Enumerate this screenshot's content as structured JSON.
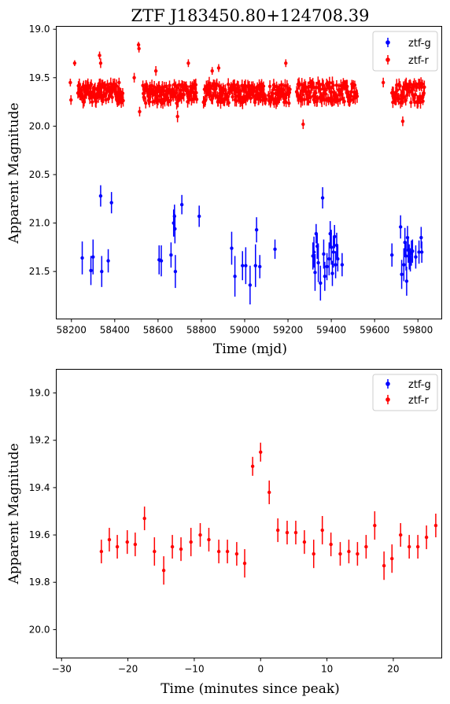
{
  "chart_data": [
    {
      "type": "scatter",
      "title": "ZTF J183450.80+124708.39",
      "xlabel": "Time (mjd)",
      "ylabel": "Apparent Magnitude",
      "xlim": [
        58130,
        59910
      ],
      "ylim": [
        21.99,
        18.97
      ],
      "y_inverted": true,
      "xticks": [
        58200,
        58400,
        58600,
        58800,
        59000,
        59200,
        59400,
        59600,
        59800
      ],
      "yticks": [
        19.0,
        19.5,
        20.0,
        20.5,
        21.0,
        21.5
      ],
      "ytick_labels": [
        "19.0",
        "19.5",
        "20.0",
        "20.5",
        "21.0",
        "21.5"
      ],
      "legend": "top-right",
      "series": [
        {
          "name": "ztf-g",
          "color": "#0000ff",
          "points": [
            [
              58250,
              21.36,
              0.17
            ],
            [
              58290,
              21.49,
              0.15
            ],
            [
              58300,
              21.35,
              0.18
            ],
            [
              58335,
              20.72,
              0.11
            ],
            [
              58340,
              21.5,
              0.16
            ],
            [
              58370,
              21.39,
              0.12
            ],
            [
              58385,
              20.79,
              0.11
            ],
            [
              58605,
              21.38,
              0.15
            ],
            [
              58615,
              21.39,
              0.16
            ],
            [
              58660,
              21.33,
              0.13
            ],
            [
              58672,
              21.0,
              0.14
            ],
            [
              58676,
              20.93,
              0.12
            ],
            [
              58678,
              21.06,
              0.15
            ],
            [
              58680,
              21.5,
              0.17
            ],
            [
              58710,
              20.81,
              0.1
            ],
            [
              58790,
              20.93,
              0.11
            ],
            [
              58940,
              21.26,
              0.17
            ],
            [
              58955,
              21.55,
              0.21
            ],
            [
              58990,
              21.44,
              0.15
            ],
            [
              59005,
              21.44,
              0.19
            ],
            [
              59025,
              21.64,
              0.2
            ],
            [
              59050,
              21.44,
              0.22
            ],
            [
              59055,
              21.07,
              0.13
            ],
            [
              59070,
              21.45,
              0.12
            ],
            [
              59140,
              21.27,
              0.1
            ],
            [
              59315,
              21.34,
              0.14
            ],
            [
              59320,
              21.3,
              0.16
            ],
            [
              59325,
              21.51,
              0.19
            ],
            [
              59330,
              21.11,
              0.1
            ],
            [
              59335,
              21.24,
              0.13
            ],
            [
              59340,
              21.41,
              0.2
            ],
            [
              59350,
              21.62,
              0.18
            ],
            [
              59360,
              20.74,
              0.11
            ],
            [
              59365,
              21.32,
              0.15
            ],
            [
              59370,
              21.55,
              0.15
            ],
            [
              59380,
              21.45,
              0.14
            ],
            [
              59390,
              21.37,
              0.17
            ],
            [
              59395,
              21.11,
              0.13
            ],
            [
              59400,
              21.25,
              0.18
            ],
            [
              59405,
              21.52,
              0.13
            ],
            [
              59410,
              21.3,
              0.16
            ],
            [
              59415,
              21.14,
              0.12
            ],
            [
              59420,
              21.43,
              0.14
            ],
            [
              59425,
              21.23,
              0.13
            ],
            [
              59430,
              21.37,
              0.13
            ],
            [
              59450,
              21.43,
              0.12
            ],
            [
              59680,
              21.33,
              0.12
            ],
            [
              59720,
              21.04,
              0.12
            ],
            [
              59725,
              21.53,
              0.15
            ],
            [
              59735,
              21.43,
              0.17
            ],
            [
              59740,
              21.2,
              0.15
            ],
            [
              59745,
              21.34,
              0.15
            ],
            [
              59748,
              21.6,
              0.15
            ],
            [
              59752,
              21.15,
              0.12
            ],
            [
              59755,
              21.28,
              0.13
            ],
            [
              59760,
              21.35,
              0.13
            ],
            [
              59765,
              21.38,
              0.12
            ],
            [
              59770,
              21.31,
              0.13
            ],
            [
              59775,
              21.29,
              0.12
            ],
            [
              59790,
              21.35,
              0.12
            ],
            [
              59805,
              21.3,
              0.12
            ],
            [
              59815,
              21.15,
              0.11
            ],
            [
              59818,
              21.3,
              0.11
            ]
          ]
        },
        {
          "name": "ztf-r",
          "color": "#ff0000",
          "points": [
            [
              58195,
              19.55,
              0.04
            ],
            [
              58198,
              19.73,
              0.05
            ],
            [
              58215,
              19.35,
              0.03
            ],
            [
              58510,
              19.16,
              0.03
            ],
            [
              58512,
              19.2,
              0.04
            ],
            [
              58515,
              19.85,
              0.05
            ],
            [
              58330,
              19.27,
              0.04
            ],
            [
              58335,
              19.35,
              0.05
            ],
            [
              58410,
              19.73,
              0.05
            ],
            [
              58420,
              19.55,
              0.05
            ],
            [
              58490,
              19.5,
              0.05
            ],
            [
              58560,
              19.72,
              0.05
            ],
            [
              58590,
              19.43,
              0.05
            ],
            [
              58615,
              19.67,
              0.05
            ],
            [
              58690,
              19.9,
              0.06
            ],
            [
              58740,
              19.35,
              0.04
            ],
            [
              58850,
              19.43,
              0.04
            ],
            [
              58880,
              19.4,
              0.04
            ],
            [
              59000,
              19.6,
              0.05
            ],
            [
              59150,
              19.75,
              0.05
            ],
            [
              59190,
              19.35,
              0.04
            ],
            [
              59270,
              19.98,
              0.05
            ],
            [
              59320,
              19.6,
              0.05
            ],
            [
              59640,
              19.55,
              0.05
            ],
            [
              59730,
              19.95,
              0.05
            ],
            [
              59820,
              19.7,
              0.05
            ]
          ],
          "dense_bands": [
            [
              58230,
              58440,
              19.66
            ],
            [
              58530,
              58780,
              19.67
            ],
            [
              58810,
              59100,
              19.66
            ],
            [
              59110,
              59210,
              19.67
            ],
            [
              59240,
              59520,
              19.65
            ],
            [
              59680,
              59830,
              19.66
            ]
          ]
        }
      ]
    },
    {
      "type": "scatter",
      "xlabel": "Time (minutes since peak)",
      "ylabel": "Apparent Magnitude",
      "xlim": [
        -30.8,
        27.3
      ],
      "ylim": [
        20.12,
        18.9
      ],
      "y_inverted": true,
      "xticks": [
        -30,
        -20,
        -10,
        0,
        10,
        20
      ],
      "yticks": [
        19.0,
        19.2,
        19.4,
        19.6,
        19.8,
        20.0
      ],
      "ytick_labels": [
        "19.0",
        "19.2",
        "19.4",
        "19.6",
        "19.8",
        "20.0"
      ],
      "legend": "top-right",
      "series": [
        {
          "name": "ztf-g",
          "color": "#0000ff",
          "points": []
        },
        {
          "name": "ztf-r",
          "color": "#ff0000",
          "points": [
            [
              -24.0,
              19.67,
              0.05
            ],
            [
              -22.8,
              19.62,
              0.05
            ],
            [
              -21.6,
              19.65,
              0.05
            ],
            [
              -20.1,
              19.63,
              0.05
            ],
            [
              -18.9,
              19.64,
              0.05
            ],
            [
              -17.5,
              19.53,
              0.05
            ],
            [
              -16.0,
              19.67,
              0.06
            ],
            [
              -14.6,
              19.75,
              0.06
            ],
            [
              -13.3,
              19.65,
              0.05
            ],
            [
              -12.0,
              19.66,
              0.05
            ],
            [
              -10.5,
              19.63,
              0.06
            ],
            [
              -9.1,
              19.6,
              0.05
            ],
            [
              -7.8,
              19.62,
              0.05
            ],
            [
              -6.3,
              19.67,
              0.05
            ],
            [
              -5.0,
              19.67,
              0.05
            ],
            [
              -3.6,
              19.68,
              0.05
            ],
            [
              -2.4,
              19.72,
              0.06
            ],
            [
              -1.2,
              19.31,
              0.04
            ],
            [
              0.0,
              19.25,
              0.04
            ],
            [
              1.3,
              19.42,
              0.05
            ],
            [
              2.6,
              19.58,
              0.05
            ],
            [
              4.0,
              19.59,
              0.05
            ],
            [
              5.3,
              19.59,
              0.05
            ],
            [
              6.6,
              19.63,
              0.05
            ],
            [
              8.0,
              19.68,
              0.06
            ],
            [
              9.3,
              19.58,
              0.06
            ],
            [
              10.6,
              19.64,
              0.05
            ],
            [
              12.0,
              19.68,
              0.05
            ],
            [
              13.3,
              19.67,
              0.05
            ],
            [
              14.6,
              19.68,
              0.05
            ],
            [
              15.9,
              19.65,
              0.05
            ],
            [
              17.2,
              19.56,
              0.06
            ],
            [
              18.6,
              19.73,
              0.06
            ],
            [
              19.8,
              19.7,
              0.06
            ],
            [
              21.1,
              19.6,
              0.05
            ],
            [
              22.4,
              19.65,
              0.05
            ],
            [
              23.7,
              19.65,
              0.05
            ],
            [
              25.0,
              19.61,
              0.05
            ],
            [
              26.4,
              19.56,
              0.05
            ]
          ]
        }
      ]
    }
  ]
}
